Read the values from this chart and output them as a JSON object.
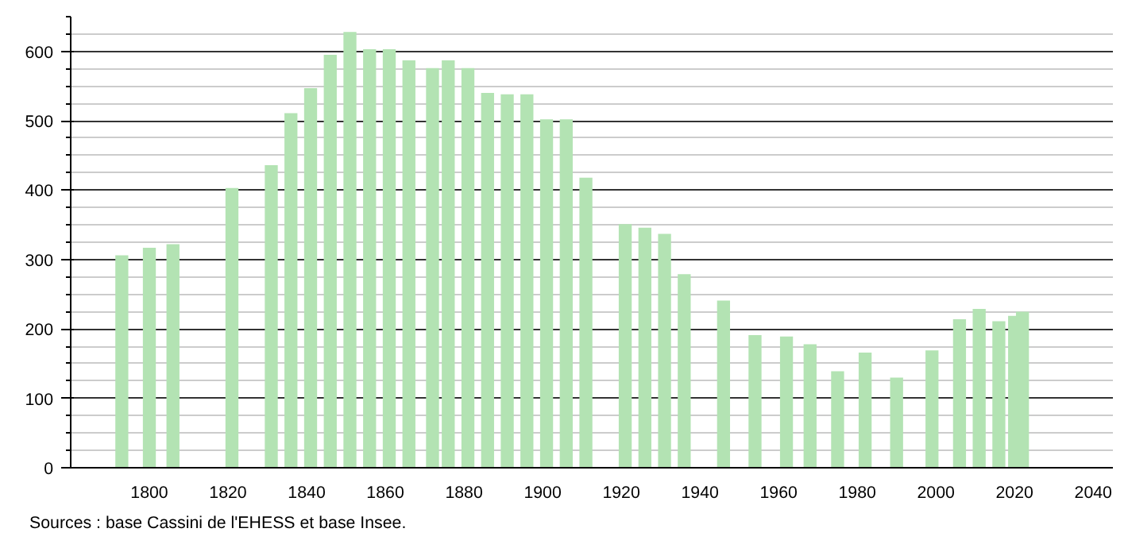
{
  "chart_data": {
    "type": "bar",
    "color": "#b3e3b3",
    "x": [
      1793,
      1800,
      1806,
      1821,
      1831,
      1836,
      1841,
      1846,
      1851,
      1856,
      1861,
      1866,
      1872,
      1876,
      1881,
      1886,
      1891,
      1896,
      1901,
      1906,
      1911,
      1921,
      1926,
      1931,
      1936,
      1946,
      1954,
      1962,
      1968,
      1975,
      1982,
      1990,
      1999,
      2006,
      2011,
      2016,
      2020,
      2022
    ],
    "values": [
      306,
      317,
      322,
      403,
      436,
      511,
      547,
      595,
      628,
      603,
      603,
      587,
      576,
      587,
      576,
      540,
      538,
      538,
      502,
      502,
      418,
      351,
      346,
      337,
      279,
      241,
      191,
      189,
      178,
      139,
      166,
      130,
      169,
      214,
      229,
      211,
      219,
      225
    ],
    "xlim": [
      1780,
      2045
    ],
    "xticks": [
      1800,
      1820,
      1840,
      1860,
      1880,
      1900,
      1920,
      1940,
      1960,
      1980,
      2000,
      2020,
      2040
    ],
    "ylim": [
      0,
      650
    ],
    "yticks": [
      0,
      {
        "value": 25,
        "label": null
      },
      {
        "value": 50,
        "label": null
      },
      {
        "value": 75,
        "label": null
      },
      100,
      {
        "value": 125,
        "label": null
      },
      {
        "value": 150,
        "label": null
      },
      {
        "value": 175,
        "label": null
      },
      200,
      {
        "value": 225,
        "label": null
      },
      {
        "value": 250,
        "label": null
      },
      {
        "value": 275,
        "label": null
      },
      300,
      {
        "value": 325,
        "label": null
      },
      {
        "value": 350,
        "label": null
      },
      {
        "value": 375,
        "label": null
      },
      400,
      {
        "value": 425,
        "label": null
      },
      {
        "value": 450,
        "label": null
      },
      {
        "value": 475,
        "label": null
      },
      500,
      {
        "value": 525,
        "label": null
      },
      {
        "value": 550,
        "label": null
      },
      {
        "value": 575,
        "label": null
      },
      600,
      {
        "value": 625,
        "label": null
      },
      {
        "value": 650,
        "label": null
      }
    ],
    "grid": "y",
    "annotations": [
      "Sources : base Cassini de l'EHESS et base Insee."
    ]
  }
}
